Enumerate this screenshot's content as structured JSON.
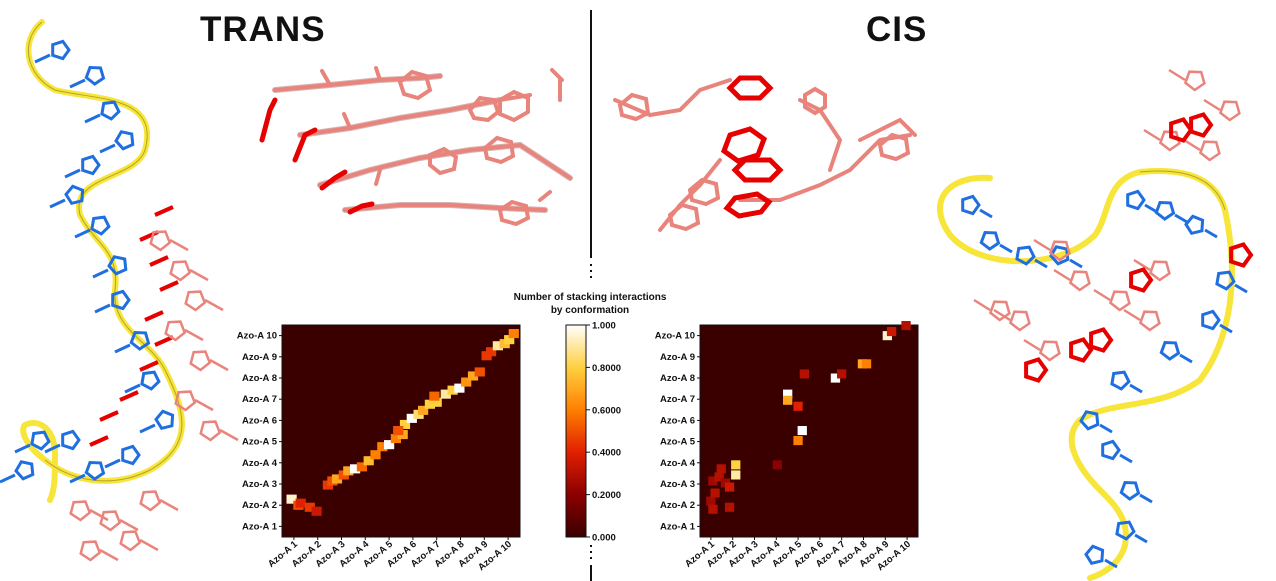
{
  "panels": {
    "trans_title": "TRANS",
    "cis_title": "CIS"
  },
  "colorbar": {
    "title_line1": "Number of stacking interactions",
    "title_line2": "by conformation",
    "ticks": [
      "1.000",
      "0.8000",
      "0.6000",
      "0.4000",
      "0.2000",
      "0.000"
    ],
    "colors": [
      "#3a0000",
      "#8b0000",
      "#e02000",
      "#ff7f00",
      "#ffd040",
      "#ffffff"
    ]
  },
  "colors": {
    "backbone": "#f7e53a",
    "base_blue": "#1f6fe0",
    "azo_pink": "#e8847c",
    "azo_red": "#e60000",
    "heatmap_bg": "#3a0000"
  },
  "chart_data": [
    {
      "type": "heatmap",
      "name": "trans",
      "x_labels": [
        "Azo-A 1",
        "Azo-A 2",
        "Azo-A 3",
        "Azo-A 4",
        "Azo-A 5",
        "Azo-A 6",
        "Azo-A 7",
        "Azo-A 8",
        "Azo-A 9",
        "Azo-A 10"
      ],
      "y_labels": [
        "Azo-A 1",
        "Azo-A 2",
        "Azo-A 3",
        "Azo-A 4",
        "Azo-A 5",
        "Azo-A 6",
        "Azo-A 7",
        "Azo-A 8",
        "Azo-A 9",
        "Azo-A 10"
      ],
      "range": [
        0,
        1
      ],
      "cells": [
        [
          0.2,
          1.6,
          0.95
        ],
        [
          0.5,
          1.3,
          0.5
        ],
        [
          0.6,
          1.4,
          0.4
        ],
        [
          1.0,
          1.2,
          0.45
        ],
        [
          1.3,
          1.0,
          0.35
        ],
        [
          1.8,
          2.3,
          0.45
        ],
        [
          2.0,
          2.5,
          0.5
        ],
        [
          2.2,
          2.6,
          0.7
        ],
        [
          2.5,
          2.8,
          0.5
        ],
        [
          2.7,
          3.0,
          0.7
        ],
        [
          3.0,
          3.1,
          1.0
        ],
        [
          3.3,
          3.2,
          0.55
        ],
        [
          3.6,
          3.5,
          0.75
        ],
        [
          3.9,
          3.8,
          0.6
        ],
        [
          4.2,
          4.2,
          0.6
        ],
        [
          4.5,
          4.3,
          1.0
        ],
        [
          4.8,
          4.6,
          0.6
        ],
        [
          5.1,
          4.8,
          0.7
        ],
        [
          5.2,
          5.3,
          0.8
        ],
        [
          5.5,
          5.6,
          1.0
        ],
        [
          5.8,
          5.8,
          0.85
        ],
        [
          6.0,
          6.0,
          0.7
        ],
        [
          6.3,
          6.3,
          0.8
        ],
        [
          6.6,
          6.4,
          0.8
        ],
        [
          7.0,
          6.8,
          0.9
        ],
        [
          7.3,
          7.0,
          0.8
        ],
        [
          7.6,
          7.1,
          1.0
        ],
        [
          7.9,
          7.4,
          0.65
        ],
        [
          8.2,
          7.7,
          0.7
        ],
        [
          8.5,
          7.9,
          0.5
        ],
        [
          9.0,
          8.9,
          0.45
        ],
        [
          9.3,
          9.2,
          0.9
        ],
        [
          9.6,
          9.3,
          0.75
        ],
        [
          9.8,
          9.5,
          0.8
        ],
        [
          8.8,
          8.7,
          0.45
        ],
        [
          10.0,
          9.8,
          0.6
        ],
        [
          6.5,
          6.7,
          0.55
        ],
        [
          4.9,
          5.0,
          0.5
        ]
      ]
    },
    {
      "type": "heatmap",
      "name": "cis",
      "x_labels": [
        "Azo-A 1",
        "Azo-A 2",
        "Azo-A 3",
        "Azo-A 4",
        "Azo-A 5",
        "Azo-A 6",
        "Azo-A 7",
        "Azo-A 8",
        "Azo-A 9",
        "Azo-A 10"
      ],
      "y_labels": [
        "Azo-A 1",
        "Azo-A 2",
        "Azo-A 3",
        "Azo-A 4",
        "Azo-A 5",
        "Azo-A 6",
        "Azo-A 7",
        "Azo-A 8",
        "Azo-A 9",
        "Azo-A 10"
      ],
      "range": [
        0,
        1
      ],
      "cells": [
        [
          0.3,
          1.5,
          0.25
        ],
        [
          0.5,
          1.9,
          0.3
        ],
        [
          0.4,
          2.5,
          0.25
        ],
        [
          0.7,
          2.7,
          0.3
        ],
        [
          1.0,
          2.4,
          0.25
        ],
        [
          1.2,
          2.2,
          0.35
        ],
        [
          1.5,
          2.8,
          0.9
        ],
        [
          1.5,
          3.3,
          0.8
        ],
        [
          1.2,
          1.2,
          0.3
        ],
        [
          0.4,
          1.1,
          0.3
        ],
        [
          0.8,
          3.1,
          0.3
        ],
        [
          3.5,
          3.3,
          0.2
        ],
        [
          4.0,
          6.8,
          1.0
        ],
        [
          4.0,
          6.5,
          0.7
        ],
        [
          4.5,
          6.2,
          0.4
        ],
        [
          4.7,
          5.0,
          1.0
        ],
        [
          4.5,
          4.5,
          0.6
        ],
        [
          4.8,
          7.8,
          0.3
        ],
        [
          6.3,
          7.6,
          1.0
        ],
        [
          6.6,
          7.8,
          0.3
        ],
        [
          7.6,
          8.3,
          0.7
        ],
        [
          7.8,
          8.3,
          0.6
        ],
        [
          8.8,
          9.7,
          0.95
        ],
        [
          9.0,
          9.9,
          0.35
        ],
        [
          9.7,
          10.2,
          0.3
        ]
      ]
    }
  ]
}
